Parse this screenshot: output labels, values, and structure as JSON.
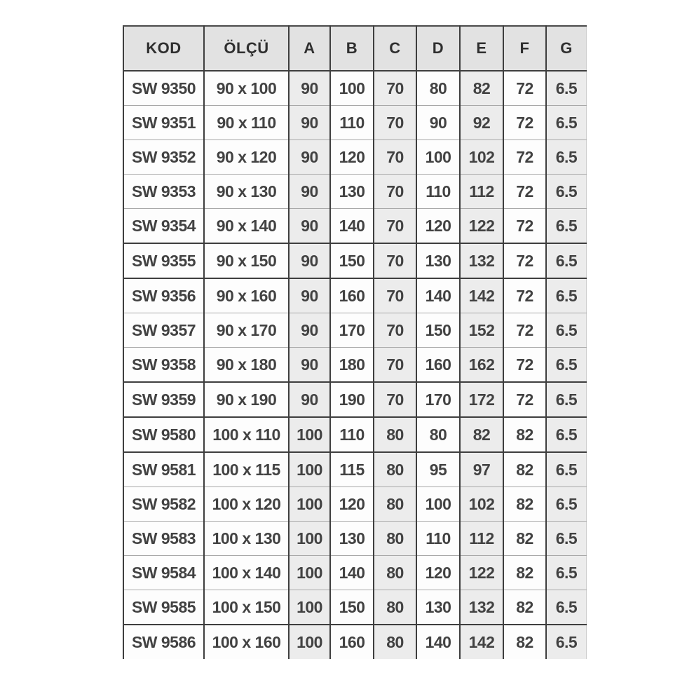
{
  "table": {
    "columns": [
      "KOD",
      "ÖLÇÜ",
      "A",
      "B",
      "C",
      "D",
      "E",
      "F",
      "G"
    ],
    "column_slugs": [
      "kod",
      "olcu",
      "a",
      "b",
      "c",
      "d",
      "e",
      "f",
      "g"
    ],
    "rows": [
      [
        "SW 9350",
        "90 x 100",
        "90",
        "100",
        "70",
        "80",
        "82",
        "72",
        "6.5"
      ],
      [
        "SW 9351",
        "90 x 110",
        "90",
        "110",
        "70",
        "90",
        "92",
        "72",
        "6.5"
      ],
      [
        "SW 9352",
        "90 x 120",
        "90",
        "120",
        "70",
        "100",
        "102",
        "72",
        "6.5"
      ],
      [
        "SW 9353",
        "90 x 130",
        "90",
        "130",
        "70",
        "110",
        "112",
        "72",
        "6.5"
      ],
      [
        "SW 9354",
        "90 x 140",
        "90",
        "140",
        "70",
        "120",
        "122",
        "72",
        "6.5"
      ],
      [
        "SW 9355",
        "90 x 150",
        "90",
        "150",
        "70",
        "130",
        "132",
        "72",
        "6.5"
      ],
      [
        "SW 9356",
        "90 x 160",
        "90",
        "160",
        "70",
        "140",
        "142",
        "72",
        "6.5"
      ],
      [
        "SW 9357",
        "90 x 170",
        "90",
        "170",
        "70",
        "150",
        "152",
        "72",
        "6.5"
      ],
      [
        "SW 9358",
        "90 x 180",
        "90",
        "180",
        "70",
        "160",
        "162",
        "72",
        "6.5"
      ],
      [
        "SW 9359",
        "90 x 190",
        "90",
        "190",
        "70",
        "170",
        "172",
        "72",
        "6.5"
      ],
      [
        "SW 9580",
        "100 x 110",
        "100",
        "110",
        "80",
        "80",
        "82",
        "82",
        "6.5"
      ],
      [
        "SW 9581",
        "100 x 115",
        "100",
        "115",
        "80",
        "95",
        "97",
        "82",
        "6.5"
      ],
      [
        "SW 9582",
        "100 x 120",
        "100",
        "120",
        "80",
        "100",
        "102",
        "82",
        "6.5"
      ],
      [
        "SW 9583",
        "100 x 130",
        "100",
        "130",
        "80",
        "110",
        "112",
        "82",
        "6.5"
      ],
      [
        "SW 9584",
        "100 x 140",
        "100",
        "140",
        "80",
        "120",
        "122",
        "82",
        "6.5"
      ],
      [
        "SW 9585",
        "100 x 150",
        "100",
        "150",
        "80",
        "130",
        "132",
        "82",
        "6.5"
      ],
      [
        "SW 9586",
        "100 x 160",
        "100",
        "160",
        "80",
        "140",
        "142",
        "82",
        "6.5"
      ]
    ]
  },
  "colors": {
    "page_bg": "#ffffff",
    "header_bg": "#e2e2e2",
    "shaded_column_bg": "#ececec",
    "cell_bg": "#fdfdfd",
    "border_dark": "#3e3e3e",
    "border_light": "#a8a8a8",
    "text": "#3d3d3d"
  }
}
